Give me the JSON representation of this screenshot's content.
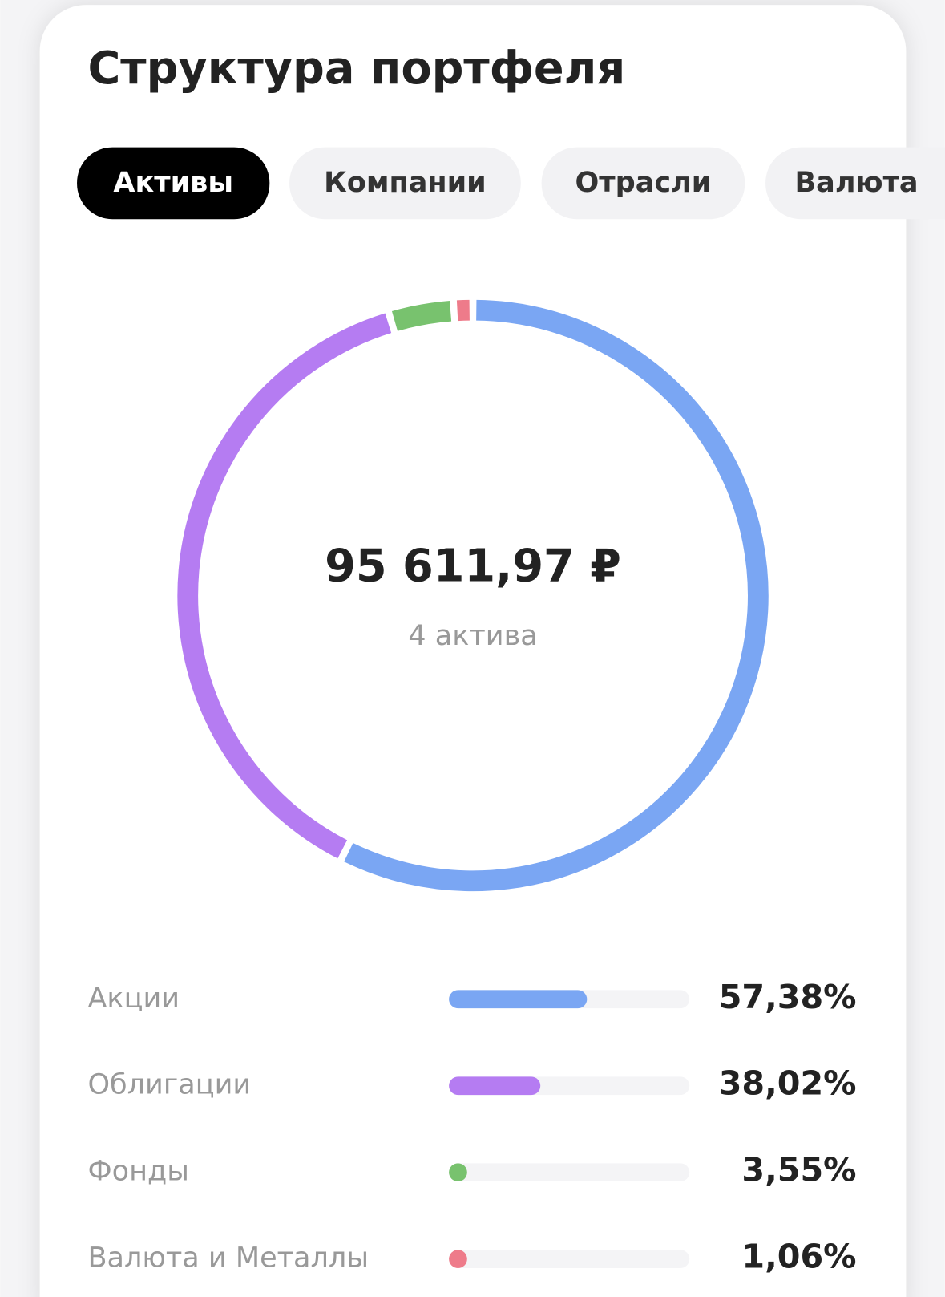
{
  "title": "Структура портфеля",
  "tabs": [
    {
      "label": "Активы",
      "active": true
    },
    {
      "label": "Компании",
      "active": false
    },
    {
      "label": "Отрасли",
      "active": false
    },
    {
      "label": "Валюта",
      "active": false
    }
  ],
  "chart_data": {
    "type": "donut",
    "center_label": "95 611,97 ₽",
    "center_sublabel": "4 актива",
    "categories": [
      "Акции",
      "Облигации",
      "Фонды",
      "Валюта и Металлы"
    ],
    "values": [
      57.38,
      38.02,
      3.55,
      1.06
    ],
    "value_labels": [
      "57,38%",
      "38,02%",
      "3,55%",
      "1,06%"
    ],
    "colors": [
      "#7aa6f3",
      "#b57cf2",
      "#78c26e",
      "#ee7b8a"
    ]
  }
}
